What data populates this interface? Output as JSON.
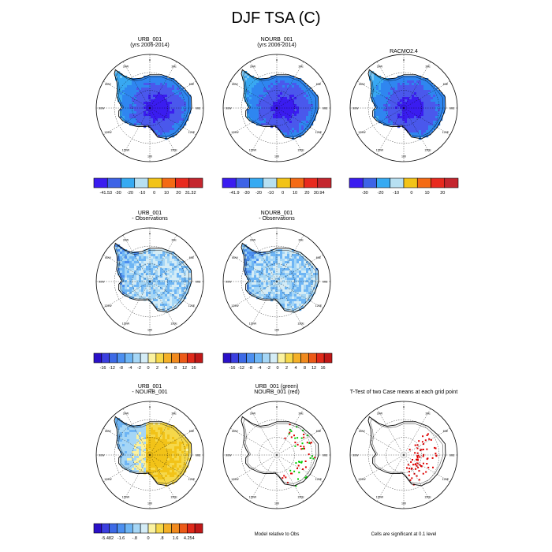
{
  "title": "DJF TSA (C)",
  "colors": {
    "background": "#ffffff",
    "ocean": "#ffffff",
    "coast": "#000000",
    "green": "#00cc00",
    "red": "#dd0000"
  },
  "lon_labels": [
    "0",
    "30E",
    "60E",
    "90E",
    "120E",
    "150E",
    "180",
    "150W",
    "120W",
    "90W",
    "60W",
    "30W"
  ],
  "footnotes": {
    "model_obs": "Model relative to Obs",
    "ttest": "Cells are significant at 0.1 level"
  },
  "chart_data": [
    {
      "type": "heatmap",
      "name": "URB_001 climatology",
      "title_lines": [
        "URB_001",
        "(yrs 2006-2014)"
      ],
      "colorbar": {
        "colors": [
          "#3a1cf0",
          "#3d63e6",
          "#36aaf2",
          "#b7e0f2",
          "#f2c318",
          "#f46a14",
          "#e82a1e",
          "#c4262e"
        ],
        "labels": [
          "-41.53",
          "-30",
          "-20",
          "-10",
          "0",
          "10",
          "20",
          "31.32"
        ]
      },
      "field": {
        "ramp": [
          "#3a1cf0",
          "#4a58ec",
          "#2f86f0",
          "#38a8f2",
          "#7cc6f2"
        ],
        "gradient": "cold-interior"
      }
    },
    {
      "type": "heatmap",
      "name": "NOURB_001 climatology",
      "title_lines": [
        "NOURB_001",
        "(yrs 2006-2014)"
      ],
      "colorbar": {
        "colors": [
          "#3a1cf0",
          "#3d63e6",
          "#36aaf2",
          "#b7e0f2",
          "#f2c318",
          "#f46a14",
          "#e82a1e",
          "#c4262e"
        ],
        "labels": [
          "-41.9",
          "-30",
          "-20",
          "-10",
          "0",
          "10",
          "20",
          "30.94"
        ]
      },
      "field": {
        "ramp": [
          "#3a1cf0",
          "#4a58ec",
          "#2f86f0",
          "#38a8f2",
          "#7cc6f2"
        ],
        "gradient": "cold-interior"
      }
    },
    {
      "type": "heatmap",
      "name": "RACMO2.4 observations",
      "title_lines": [
        "RACMO2.4"
      ],
      "colorbar": {
        "colors": [
          "#3a1cf0",
          "#3d63e6",
          "#36aaf2",
          "#b7e0f2",
          "#f2c318",
          "#f46a14",
          "#e82a1e",
          "#c4262e"
        ],
        "labels": [
          "-30",
          "-20",
          "-10",
          "0",
          "10",
          "20"
        ]
      },
      "field": {
        "ramp": [
          "#3a1cf0",
          "#4a58ec",
          "#2f86f0",
          "#38a8f2",
          "#7cc6f2"
        ],
        "gradient": "cold-interior"
      }
    },
    {
      "type": "heatmap",
      "name": "URB_001 minus Observations",
      "title_lines": [
        "URB_001",
        "- Observations"
      ],
      "colorbar": {
        "colors": [
          "#2a10c8",
          "#3b3fe0",
          "#3d6ae6",
          "#4c8ff0",
          "#6eb5f4",
          "#a5d6f6",
          "#d4ecf6",
          "#fbf2a0",
          "#f6d84a",
          "#f4b028",
          "#f08a1e",
          "#ec5a18",
          "#e02a1a",
          "#c01818"
        ],
        "labels": [
          "-16",
          "-12",
          "-8",
          "-4",
          "-2",
          "0",
          "2",
          "4",
          "8",
          "12",
          "16"
        ]
      },
      "field": {
        "ramp": [
          "#4c8ff0",
          "#6eb5f4",
          "#a5d6f6",
          "#d4ecf6",
          "#fbf2a0"
        ],
        "gradient": "mixed-cool"
      }
    },
    {
      "type": "heatmap",
      "name": "NOURB_001 minus Observations",
      "title_lines": [
        "NOURB_001",
        "- Observations"
      ],
      "colorbar": {
        "colors": [
          "#2a10c8",
          "#3b3fe0",
          "#3d6ae6",
          "#4c8ff0",
          "#6eb5f4",
          "#a5d6f6",
          "#d4ecf6",
          "#fbf2a0",
          "#f6d84a",
          "#f4b028",
          "#f08a1e",
          "#ec5a18",
          "#e02a1a",
          "#c01818"
        ],
        "labels": [
          "-16",
          "-12",
          "-8",
          "-4",
          "-2",
          "0",
          "2",
          "4",
          "8",
          "12",
          "16"
        ]
      },
      "field": {
        "ramp": [
          "#4c8ff0",
          "#6eb5f4",
          "#a5d6f6",
          "#d4ecf6",
          "#fbf2a0"
        ],
        "gradient": "mixed-cool"
      }
    },
    {
      "type": "heatmap",
      "name": "URB_001 minus NOURB_001",
      "title_lines": [
        "URB_001",
        "- NOURB_001"
      ],
      "colorbar": {
        "colors": [
          "#2a10c8",
          "#3b3fe0",
          "#3d6ae6",
          "#4c8ff0",
          "#6eb5f4",
          "#a5d6f6",
          "#d4ecf6",
          "#fbf2a0",
          "#f6d84a",
          "#f4b028",
          "#f08a1e",
          "#ec5a18",
          "#e02a1a",
          "#c01818"
        ],
        "labels": [
          "-5.482",
          "-1.6",
          "-.8",
          "0",
          ".8",
          "1.6",
          "4.254"
        ]
      },
      "field": {
        "ramp": [
          "#f2c318",
          "#f6d84a",
          "#fbf2a0",
          "#a5d6f6",
          "#6eb5f4"
        ],
        "gradient": "warm-interior"
      }
    },
    {
      "type": "scatter",
      "name": "Model relative to Obs",
      "title_lines": [
        "URB_001 (green)",
        "NOURB_001 (red)"
      ],
      "dot_colors": [
        "#00cc00",
        "#dd0000"
      ],
      "region": "east-coast"
    },
    {
      "type": "scatter",
      "name": "T-Test significance",
      "title_lines": [
        "T-Test of two Case means at each grid point"
      ],
      "dot_colors": [
        "#dd0000"
      ],
      "region": "east-interior"
    }
  ]
}
